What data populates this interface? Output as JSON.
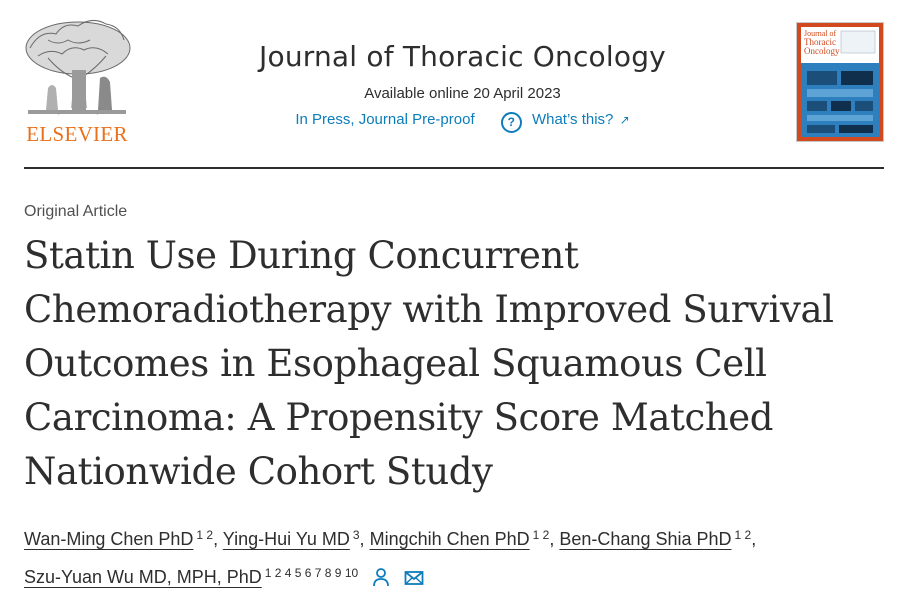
{
  "publisher": {
    "name": "ELSEVIER",
    "logo_icon": "elsevier-tree-icon",
    "brand_color": "#e9711c"
  },
  "journal": {
    "title": "Journal of Thoracic Oncology",
    "available": "Available online 20 April 2023",
    "status_link": "In Press, Journal Pre-proof",
    "help_icon": "question-circle-icon",
    "help_link": "What’s this?",
    "external_icon": "external-link-arrow-icon",
    "link_color": "#0c7dbb"
  },
  "cover": {
    "title_lines": [
      "Journal of",
      "Thoracic",
      "Oncology"
    ],
    "frame_color": "#d14a1f",
    "page_color": "#2d7fbd"
  },
  "article": {
    "type": "Original Article",
    "title": "Statin Use During Concurrent Chemoradiotherapy with Improved Survival Outcomes in Esophageal Squamous Cell Carcinoma: A Propensity Score Matched Nationwide Cohort Study"
  },
  "authors": [
    {
      "name": "Wan-Ming Chen PhD",
      "aff": "1 2",
      "sep": ","
    },
    {
      "name": "Ying-Hui Yu MD",
      "aff": "3",
      "sep": ","
    },
    {
      "name": "Mingchih Chen PhD",
      "aff": "1 2",
      "sep": ","
    },
    {
      "name": "Ben-Chang Shia PhD",
      "aff": "1 2",
      "sep": ","
    },
    {
      "name": "Szu-Yuan Wu MD, MPH, PhD",
      "aff": "1 2 4 5 6 7 8 9 10",
      "sep": ""
    }
  ],
  "author_icons": [
    "person-icon",
    "envelope-icon"
  ]
}
